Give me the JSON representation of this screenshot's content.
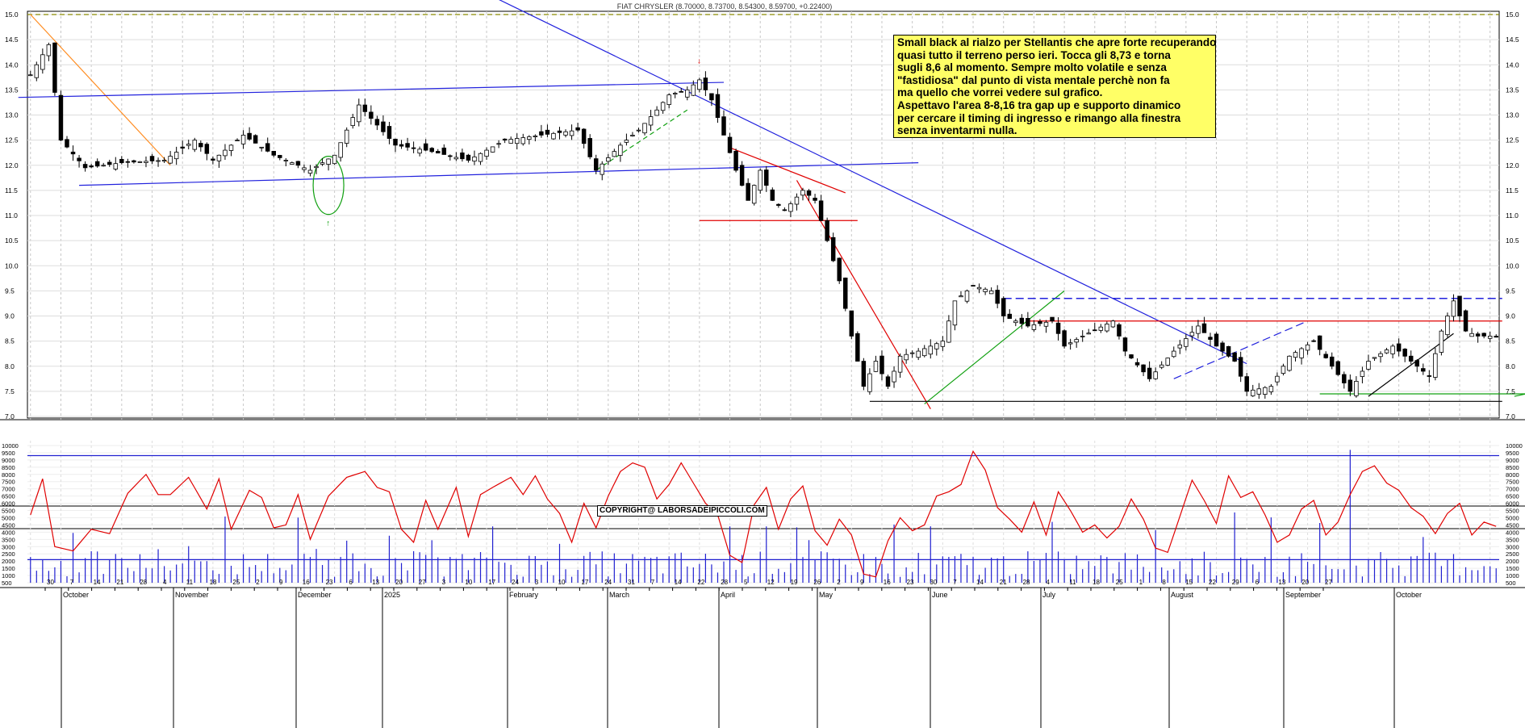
{
  "chart_data": [
    {
      "type": "candlestick",
      "title": "FIAT CHRYSLER (8.70000, 8.73700, 8.54300, 8.59700, +0.22400)",
      "ylim": [
        7.0,
        15.0
      ],
      "y_ticks": [
        "7.0",
        "7.5",
        "8.0",
        "8.5",
        "9.0",
        "9.5",
        "10.0",
        "10.5",
        "11.0",
        "11.5",
        "12.0",
        "12.5",
        "13.0",
        "13.5",
        "14.0",
        "14.5",
        "15.0"
      ],
      "grid": true,
      "close_anchors": [
        [
          0,
          13.8
        ],
        [
          3,
          14.4
        ],
        [
          5,
          12.5
        ],
        [
          9,
          11.95
        ],
        [
          15,
          12.05
        ],
        [
          22,
          12.1
        ],
        [
          27,
          12.5
        ],
        [
          30,
          12.1
        ],
        [
          35,
          12.6
        ],
        [
          40,
          12.2
        ],
        [
          46,
          11.9
        ],
        [
          50,
          12.2
        ],
        [
          54,
          13.2
        ],
        [
          60,
          12.4
        ],
        [
          65,
          12.3
        ],
        [
          72,
          12.1
        ],
        [
          78,
          12.5
        ],
        [
          84,
          12.6
        ],
        [
          90,
          12.7
        ],
        [
          93,
          11.9
        ],
        [
          97,
          12.4
        ],
        [
          100,
          12.7
        ],
        [
          103,
          13.1
        ],
        [
          105,
          13.4
        ],
        [
          108,
          13.5
        ],
        [
          110,
          13.7
        ],
        [
          112,
          13.3
        ],
        [
          114,
          12.6
        ],
        [
          116,
          11.9
        ],
        [
          118,
          11.3
        ],
        [
          120,
          11.9
        ],
        [
          122,
          11.3
        ],
        [
          124,
          11.1
        ],
        [
          127,
          11.5
        ],
        [
          129,
          11.3
        ],
        [
          131,
          10.5
        ],
        [
          133,
          9.7
        ],
        [
          135,
          8.6
        ],
        [
          137,
          7.6
        ],
        [
          139,
          8.1
        ],
        [
          141,
          7.6
        ],
        [
          143,
          8.2
        ],
        [
          146,
          8.3
        ],
        [
          150,
          8.5
        ],
        [
          152,
          9.3
        ],
        [
          155,
          9.6
        ],
        [
          158,
          9.5
        ],
        [
          160,
          9.0
        ],
        [
          164,
          8.8
        ],
        [
          168,
          8.9
        ],
        [
          170,
          8.4
        ],
        [
          173,
          8.6
        ],
        [
          178,
          8.9
        ],
        [
          180,
          8.3
        ],
        [
          184,
          7.75
        ],
        [
          188,
          8.3
        ],
        [
          192,
          8.8
        ],
        [
          195,
          8.4
        ],
        [
          198,
          8.1
        ],
        [
          200,
          7.5
        ],
        [
          204,
          7.6
        ],
        [
          207,
          8.2
        ],
        [
          211,
          8.5
        ],
        [
          214,
          8.0
        ],
        [
          217,
          7.5
        ],
        [
          220,
          8.1
        ],
        [
          224,
          8.4
        ],
        [
          228,
          8.0
        ],
        [
          230,
          7.8
        ],
        [
          232,
          8.7
        ],
        [
          234,
          9.3
        ],
        [
          236,
          8.7
        ],
        [
          238,
          8.6
        ],
        [
          240,
          8.6
        ]
      ],
      "support_resistance": [
        7.3,
        8.9,
        9.35
      ],
      "months": [
        "October",
        "November",
        "December",
        "2025",
        "February",
        "March",
        "April",
        "May",
        "June",
        "July",
        "August",
        "September",
        "October"
      ],
      "day_labels": [
        "30",
        "7",
        "14",
        "21",
        "28",
        "4",
        "11",
        "18",
        "25",
        "2",
        "9",
        "16",
        "23",
        "6",
        "13",
        "20",
        "27",
        "3",
        "10",
        "17",
        "24",
        "3",
        "10",
        "17",
        "24",
        "31",
        "7",
        "14",
        "22",
        "28",
        "5",
        "12",
        "19",
        "26",
        "2",
        "9",
        "16",
        "23",
        "30",
        "7",
        "14",
        "21",
        "28",
        "4",
        "11",
        "18",
        "25",
        "1",
        "8",
        "15",
        "22",
        "29",
        "6",
        "13",
        "20",
        "27"
      ]
    },
    {
      "type": "bar+line",
      "ylim": [
        500,
        10000
      ],
      "y_ticks": [
        "10000",
        "9500",
        "9000",
        "8500",
        "8000",
        "7500",
        "7000",
        "6500",
        "6000",
        "5500",
        "5000",
        "4500",
        "4000",
        "3500",
        "3000",
        "2500",
        "2000",
        "1500",
        "1000",
        "500"
      ],
      "reference_lines": [
        9300,
        2100
      ],
      "oscillator_anchors": [
        [
          0,
          5200
        ],
        [
          2,
          7700
        ],
        [
          4,
          3000
        ],
        [
          7,
          2700
        ],
        [
          10,
          4200
        ],
        [
          13,
          3900
        ],
        [
          16,
          6700
        ],
        [
          19,
          8000
        ],
        [
          21,
          6600
        ],
        [
          23,
          6600
        ],
        [
          26,
          7800
        ],
        [
          29,
          5600
        ],
        [
          31,
          7700
        ],
        [
          33,
          4200
        ],
        [
          36,
          6900
        ],
        [
          38,
          6400
        ],
        [
          40,
          4300
        ],
        [
          42,
          4500
        ],
        [
          44,
          6600
        ],
        [
          46,
          3500
        ],
        [
          49,
          6500
        ],
        [
          52,
          7800
        ],
        [
          55,
          8200
        ],
        [
          57,
          7100
        ],
        [
          59,
          6800
        ],
        [
          61,
          4200
        ],
        [
          63,
          3300
        ],
        [
          65,
          6200
        ],
        [
          67,
          4200
        ],
        [
          70,
          7100
        ],
        [
          72,
          3700
        ],
        [
          74,
          6600
        ],
        [
          76,
          7100
        ],
        [
          79,
          7800
        ],
        [
          81,
          6600
        ],
        [
          83,
          7900
        ],
        [
          85,
          6300
        ],
        [
          87,
          5300
        ],
        [
          89,
          3300
        ],
        [
          91,
          6000
        ],
        [
          93,
          4300
        ],
        [
          95,
          6500
        ],
        [
          97,
          8200
        ],
        [
          99,
          8800
        ],
        [
          101,
          8500
        ],
        [
          103,
          6300
        ],
        [
          105,
          7300
        ],
        [
          107,
          8800
        ],
        [
          109,
          7400
        ],
        [
          111,
          6000
        ],
        [
          113,
          5200
        ],
        [
          115,
          2400
        ],
        [
          117,
          1900
        ],
        [
          119,
          5900
        ],
        [
          121,
          7100
        ],
        [
          123,
          4200
        ],
        [
          125,
          6300
        ],
        [
          127,
          7200
        ],
        [
          129,
          4100
        ],
        [
          131,
          3100
        ],
        [
          133,
          4900
        ],
        [
          135,
          3800
        ],
        [
          137,
          1100
        ],
        [
          139,
          900
        ],
        [
          141,
          3400
        ],
        [
          143,
          5000
        ],
        [
          145,
          4100
        ],
        [
          147,
          4500
        ],
        [
          149,
          6500
        ],
        [
          151,
          6800
        ],
        [
          153,
          7300
        ],
        [
          155,
          9600
        ],
        [
          157,
          8300
        ],
        [
          159,
          5700
        ],
        [
          161,
          4900
        ],
        [
          163,
          4000
        ],
        [
          165,
          6100
        ],
        [
          167,
          3800
        ],
        [
          169,
          6800
        ],
        [
          171,
          5500
        ],
        [
          173,
          4000
        ],
        [
          175,
          4500
        ],
        [
          177,
          3600
        ],
        [
          179,
          4400
        ],
        [
          181,
          6300
        ],
        [
          183,
          4900
        ],
        [
          185,
          2900
        ],
        [
          187,
          2600
        ],
        [
          189,
          5100
        ],
        [
          191,
          7600
        ],
        [
          193,
          6200
        ],
        [
          195,
          4600
        ],
        [
          197,
          7900
        ],
        [
          199,
          6400
        ],
        [
          201,
          6800
        ],
        [
          203,
          5200
        ],
        [
          205,
          3300
        ],
        [
          207,
          3800
        ],
        [
          209,
          5600
        ],
        [
          211,
          6200
        ],
        [
          213,
          3800
        ],
        [
          215,
          4700
        ],
        [
          217,
          6600
        ],
        [
          219,
          8200
        ],
        [
          221,
          8600
        ],
        [
          223,
          7400
        ],
        [
          225,
          6900
        ],
        [
          227,
          5700
        ],
        [
          229,
          5100
        ],
        [
          231,
          3900
        ],
        [
          233,
          5300
        ],
        [
          235,
          6000
        ],
        [
          237,
          3800
        ],
        [
          239,
          4700
        ],
        [
          241,
          4400
        ]
      ]
    }
  ],
  "note": {
    "lines": [
      "Small black al rialzo per Stellantis che apre forte recuperando",
      "quasi tutto il terreno perso ieri. Tocca gli 8,73 e torna",
      "sugli 8,6 al momento. Sempre molto volatile e senza",
      "\"fastidiosa\" dal punto di vista mentale perchè non fa",
      "ma quello che vorrei vedere sul grafico.",
      "Aspettavo l'area 8-8,16 tra gap up e supporto dinamico",
      "per cercare il timing di ingresso e rimango alla finestra",
      "senza inventarmi nulla."
    ]
  },
  "copyright": "COPYRIGHT@ LABORSADEIPICCOLI.COM",
  "colors": {
    "candle_up": "#ffffff",
    "candle_down": "#000000",
    "trend_blue": "#2222dd",
    "trend_red": "#e00000",
    "trend_green": "#10a010",
    "trend_orange": "#ff8c20",
    "level_olive": "#8b8b00",
    "note_bg": "#ffff66",
    "osc_red": "#e00000",
    "volume_blue": "#2020d0"
  }
}
